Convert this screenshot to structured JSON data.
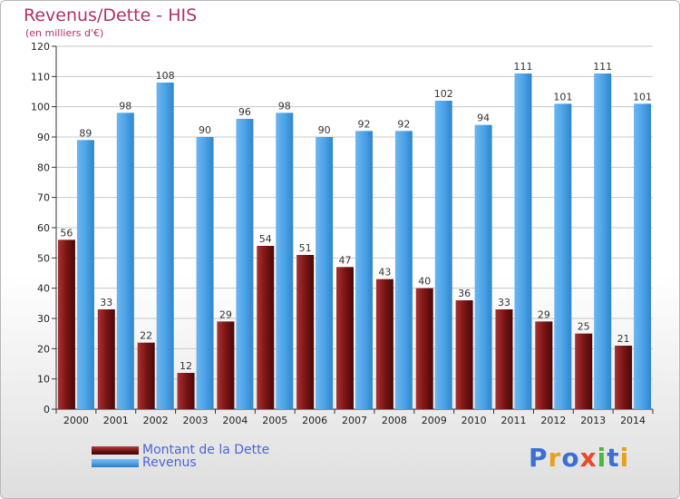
{
  "header": {
    "title": "Revenus/Dette - HIS",
    "subtitle": "(en milliers d'€)"
  },
  "brand": {
    "name": "Proxiti",
    "letter_colors": [
      "#3a6fd6",
      "#e8a020",
      "#3a6fd6",
      "#e84a2a",
      "#4ab83a",
      "#3a6fd6",
      "#e8a020"
    ]
  },
  "colors": {
    "dette": "#7a1515",
    "revenus": "#4da3e8",
    "grid": "#c8c8c8"
  },
  "chart_data": {
    "type": "bar",
    "title": "Revenus/Dette - HIS",
    "subtitle": "(en milliers d'€)",
    "categories": [
      "2000",
      "2001",
      "2002",
      "2003",
      "2004",
      "2005",
      "2006",
      "2007",
      "2008",
      "2009",
      "2010",
      "2011",
      "2012",
      "2013",
      "2014"
    ],
    "series": [
      {
        "name": "Montant de la Dette",
        "values": [
          56,
          33,
          22,
          12,
          29,
          54,
          51,
          47,
          43,
          40,
          36,
          33,
          29,
          25,
          21
        ]
      },
      {
        "name": "Revenus",
        "values": [
          89,
          98,
          108,
          90,
          96,
          98,
          90,
          92,
          92,
          102,
          94,
          111,
          101,
          111,
          101
        ]
      }
    ],
    "ylim": [
      0,
      120
    ],
    "yticks": [
      0,
      10,
      20,
      30,
      40,
      50,
      60,
      70,
      80,
      90,
      100,
      110,
      120
    ],
    "grid": true,
    "legend_position": "bottom-left"
  }
}
